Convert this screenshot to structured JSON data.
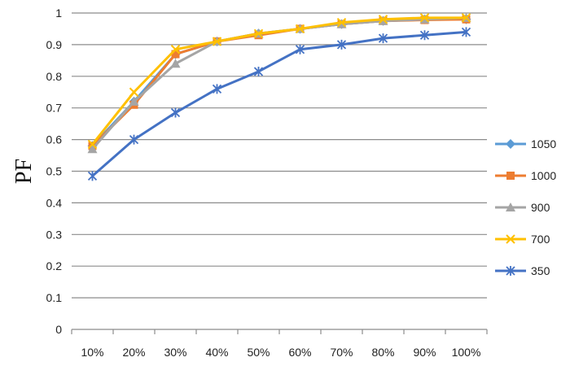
{
  "chart_data": {
    "type": "line",
    "title": "",
    "xlabel": "",
    "ylabel": "PF",
    "categories": [
      "10%",
      "20%",
      "30%",
      "40%",
      "50%",
      "60%",
      "70%",
      "80%",
      "90%",
      "100%"
    ],
    "ylim": [
      0,
      1
    ],
    "yticks": [
      "0",
      "0.1",
      "0.2",
      "0.3",
      "0.4",
      "0.5",
      "0.6",
      "0.7",
      "0.8",
      "0.9",
      "1"
    ],
    "grid": "horizontal",
    "legend_position": "right",
    "series": [
      {
        "name": "1050",
        "color": "#5b9bd5",
        "marker": "diamond",
        "values": [
          0.58,
          0.72,
          0.87,
          0.91,
          0.935,
          0.95,
          0.965,
          0.975,
          0.98,
          0.98
        ]
      },
      {
        "name": "1000",
        "color": "#ed7d31",
        "marker": "square",
        "values": [
          0.58,
          0.71,
          0.87,
          0.91,
          0.93,
          0.95,
          0.965,
          0.975,
          0.978,
          0.98
        ]
      },
      {
        "name": "900",
        "color": "#a5a5a5",
        "marker": "triangle",
        "values": [
          0.57,
          0.72,
          0.84,
          0.91,
          0.935,
          0.95,
          0.965,
          0.975,
          0.98,
          0.985
        ]
      },
      {
        "name": "700",
        "color": "#ffc000",
        "marker": "x",
        "values": [
          0.585,
          0.75,
          0.885,
          0.91,
          0.935,
          0.95,
          0.97,
          0.98,
          0.985,
          0.985
        ]
      },
      {
        "name": "350",
        "color": "#4472c4",
        "marker": "star",
        "values": [
          0.485,
          0.6,
          0.685,
          0.76,
          0.815,
          0.885,
          0.9,
          0.92,
          0.93,
          0.94
        ]
      }
    ]
  }
}
